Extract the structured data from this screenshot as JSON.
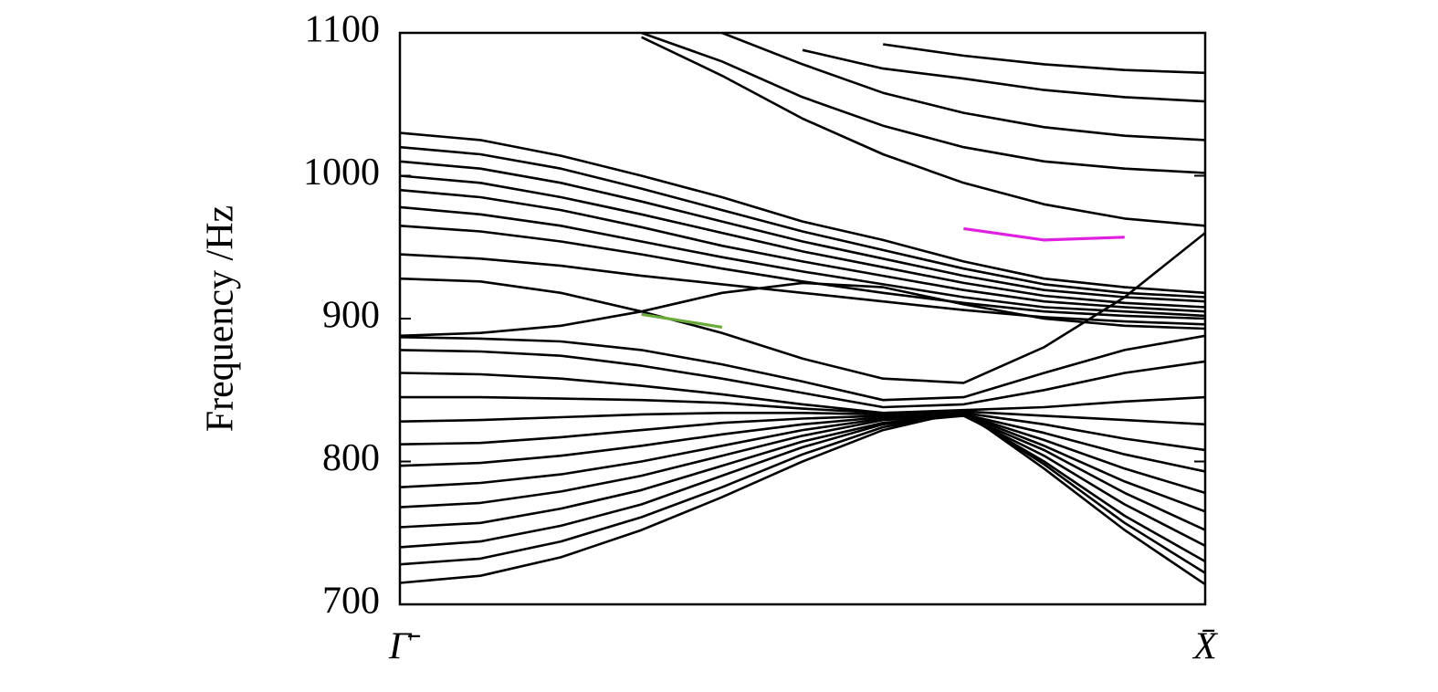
{
  "chart_data": {
    "type": "line",
    "ylabel": "Frequency /Hz",
    "x": [
      0,
      0.1,
      0.2,
      0.3,
      0.4,
      0.5,
      0.6,
      0.7,
      0.8,
      0.9,
      1
    ],
    "xlim": [
      0,
      1
    ],
    "xticks": [
      {
        "value": 0,
        "label": "Γ̄"
      },
      {
        "value": 1,
        "label": "X̄"
      }
    ],
    "ylim": [
      700,
      1100
    ],
    "yticks": [
      700,
      800,
      900,
      1000,
      1100
    ],
    "grid": false,
    "series": [
      {
        "color": "#000000",
        "values": [
          715,
          720,
          733,
          752,
          775,
          800,
          822,
          835,
          795,
          752,
          714
        ]
      },
      {
        "color": "#000000",
        "values": [
          728,
          732,
          744,
          761,
          782,
          805,
          824,
          834,
          798,
          757,
          722
        ]
      },
      {
        "color": "#000000",
        "values": [
          740,
          744,
          755,
          770,
          790,
          810,
          826,
          833,
          800,
          762,
          730
        ]
      },
      {
        "color": "#000000",
        "values": [
          754,
          757,
          767,
          780,
          797,
          814,
          827,
          832,
          804,
          770,
          741
        ]
      },
      {
        "color": "#000000",
        "values": [
          768,
          771,
          779,
          790,
          804,
          818,
          829,
          832,
          808,
          778,
          752
        ]
      },
      {
        "color": "#000000",
        "values": [
          782,
          785,
          791,
          800,
          811,
          822,
          830,
          833,
          811,
          786,
          765
        ]
      },
      {
        "color": "#000000",
        "values": [
          797,
          799,
          804,
          811,
          819,
          826,
          831,
          833,
          815,
          795,
          778
        ]
      },
      {
        "color": "#000000",
        "values": [
          812,
          813,
          817,
          822,
          827,
          830,
          832,
          833,
          820,
          805,
          793
        ]
      },
      {
        "color": "#000000",
        "values": [
          828,
          829,
          831,
          833,
          834,
          834,
          833,
          834,
          826,
          816,
          808
        ]
      },
      {
        "color": "#000000",
        "values": [
          845,
          845,
          844,
          843,
          841,
          837,
          834,
          835,
          832,
          829,
          826
        ]
      },
      {
        "color": "#000000",
        "values": [
          862,
          861,
          858,
          853,
          847,
          840,
          834,
          836,
          838,
          842,
          845
        ]
      },
      {
        "color": "#000000",
        "values": [
          878,
          877,
          874,
          867,
          858,
          848,
          838,
          840,
          850,
          862,
          870
        ]
      },
      {
        "color": "#000000",
        "values": [
          887,
          886,
          884,
          878,
          868,
          856,
          843,
          845,
          862,
          878,
          888
        ]
      },
      {
        "color": "#000000",
        "values": [
          928,
          926,
          918,
          905,
          890,
          872,
          858,
          855,
          880,
          915,
          960
        ]
      },
      {
        "color": "#000000",
        "values": [
          888,
          890,
          895,
          905,
          918,
          925,
          922,
          910,
          900,
          895,
          893
        ]
      },
      {
        "color": "#000000",
        "values": [
          1030,
          1025,
          1014,
          1000,
          985,
          968,
          955,
          940,
          928,
          922,
          918
        ]
      },
      {
        "color": "#000000",
        "values": [
          1020,
          1015,
          1005,
          991,
          976,
          961,
          948,
          935,
          924,
          918,
          915
        ]
      },
      {
        "color": "#000000",
        "values": [
          1010,
          1005,
          995,
          982,
          968,
          954,
          942,
          930,
          920,
          915,
          912
        ]
      },
      {
        "color": "#000000",
        "values": [
          1000,
          995,
          985,
          973,
          960,
          947,
          936,
          925,
          916,
          911,
          908
        ]
      },
      {
        "color": "#000000",
        "values": [
          990,
          985,
          976,
          964,
          951,
          940,
          930,
          920,
          912,
          908,
          905
        ]
      },
      {
        "color": "#000000",
        "values": [
          978,
          973,
          965,
          954,
          943,
          933,
          924,
          915,
          908,
          905,
          902
        ]
      },
      {
        "color": "#000000",
        "values": [
          965,
          961,
          954,
          945,
          935,
          926,
          918,
          911,
          905,
          902,
          900
        ]
      },
      {
        "color": "#000000",
        "values": [
          945,
          942,
          937,
          930,
          924,
          918,
          912,
          906,
          901,
          898,
          896
        ]
      },
      {
        "color": "#000000",
        "values": [
          null,
          null,
          null,
          1097,
          1070,
          1040,
          1015,
          995,
          980,
          970,
          965
        ]
      },
      {
        "color": "#000000",
        "values": [
          null,
          null,
          null,
          1100,
          1080,
          1055,
          1035,
          1020,
          1010,
          1005,
          1002
        ]
      },
      {
        "color": "#000000",
        "values": [
          null,
          null,
          null,
          null,
          1100,
          1078,
          1058,
          1044,
          1034,
          1028,
          1025
        ]
      },
      {
        "color": "#000000",
        "values": [
          null,
          null,
          null,
          null,
          null,
          1088,
          1075,
          1068,
          1060,
          1055,
          1052
        ]
      },
      {
        "color": "#000000",
        "values": [
          null,
          null,
          null,
          null,
          null,
          null,
          1092,
          1084,
          1078,
          1074,
          1072
        ]
      },
      {
        "color": "#6aaa3a",
        "values": [
          null,
          null,
          null,
          903,
          894,
          null,
          null,
          null,
          null,
          null,
          null
        ]
      },
      {
        "color": "#e020e0",
        "values": [
          null,
          null,
          null,
          null,
          null,
          null,
          null,
          963,
          955,
          957,
          null
        ]
      }
    ]
  }
}
